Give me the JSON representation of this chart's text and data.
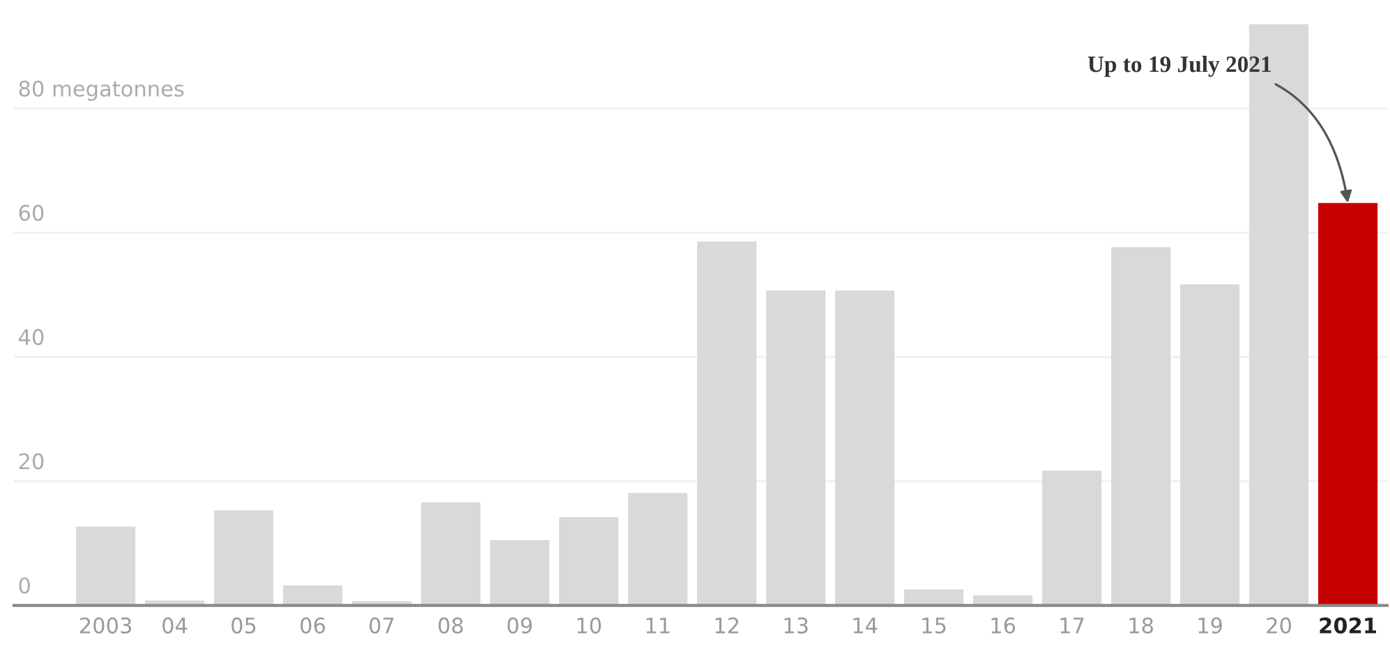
{
  "chart_data": {
    "type": "bar",
    "categories": [
      "2003",
      "04",
      "05",
      "06",
      "07",
      "08",
      "09",
      "10",
      "11",
      "12",
      "13",
      "14",
      "15",
      "16",
      "17",
      "18",
      "19",
      "20",
      "2021"
    ],
    "values": [
      12.7,
      0.8,
      15.3,
      3.2,
      0.7,
      16.6,
      10.5,
      14.2,
      18.1,
      58.6,
      50.7,
      50.7,
      2.6,
      1.6,
      21.7,
      57.7,
      51.7,
      93.6,
      64.8
    ],
    "colors": [
      "#d9d9d9",
      "#d9d9d9",
      "#d9d9d9",
      "#d9d9d9",
      "#d9d9d9",
      "#d9d9d9",
      "#d9d9d9",
      "#d9d9d9",
      "#d9d9d9",
      "#d9d9d9",
      "#d9d9d9",
      "#d9d9d9",
      "#d9d9d9",
      "#d9d9d9",
      "#d9d9d9",
      "#d9d9d9",
      "#d9d9d9",
      "#d9d9d9",
      "#c70000"
    ],
    "ylim": [
      0,
      93.6
    ],
    "yticks": [
      0,
      20,
      40,
      60,
      {
        "value": 80,
        "label": "80 megatonnes"
      }
    ],
    "grid": "y",
    "annotations": [
      {
        "text": "Up to 19 July 2021",
        "x": "2021",
        "y": 64.8
      }
    ]
  }
}
